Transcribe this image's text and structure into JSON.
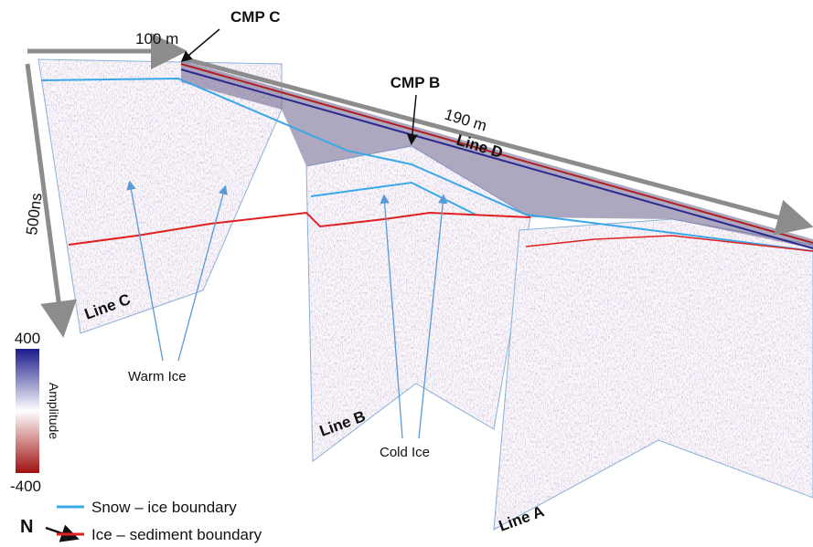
{
  "annotations": {
    "cmp_c": "CMP C",
    "cmp_b": "CMP B",
    "dist_c": "100 m",
    "dist_d": "190 m",
    "depth": "500ns"
  },
  "lines": {
    "c": "Line C",
    "b": "Line B",
    "a": "Line A",
    "d": "Line D"
  },
  "labels": {
    "warm": "Warm Ice",
    "cold": "Cold Ice"
  },
  "colorbar": {
    "max": 400,
    "min": -400,
    "title": "Amplitude"
  },
  "legend": {
    "snow": "Snow – ice boundary",
    "sediment": "Ice – sediment boundary"
  },
  "north": "N"
}
